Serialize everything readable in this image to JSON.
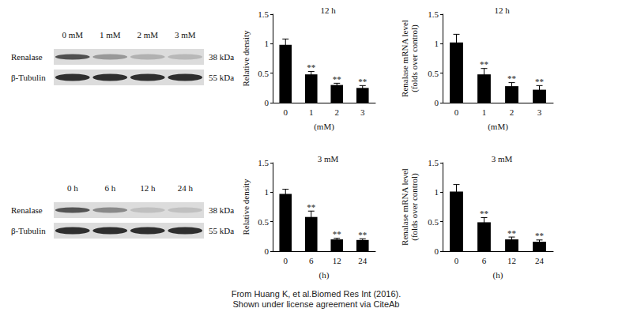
{
  "chart_data": [
    {
      "type": "bar",
      "title": "12 h",
      "y_label": "Relative density",
      "x_label": "(mM)",
      "categories": [
        "0",
        "1",
        "2",
        "3"
      ],
      "values": [
        0.98,
        0.48,
        0.3,
        0.25
      ],
      "errors": [
        0.1,
        0.05,
        0.03,
        0.04
      ],
      "annotations": [
        null,
        "**",
        "**",
        "**"
      ],
      "color": "#000000",
      "ylim": [
        0,
        1.5
      ],
      "yticks": [
        0,
        0.5,
        1,
        1.5
      ],
      "grid": false
    },
    {
      "type": "bar",
      "title": "12 h",
      "y_label": "Renalase mRNA level\n(folds over control)",
      "x_label": "(mM)",
      "categories": [
        "0",
        "1",
        "2",
        "3"
      ],
      "values": [
        1.02,
        0.48,
        0.28,
        0.22
      ],
      "errors": [
        0.14,
        0.1,
        0.06,
        0.07
      ],
      "annotations": [
        null,
        "**",
        "**",
        "**"
      ],
      "color": "#000000",
      "ylim": [
        0,
        1.5
      ],
      "yticks": [
        0,
        0.5,
        1,
        1.5
      ],
      "grid": false
    },
    {
      "type": "bar",
      "title": "3 mM",
      "y_label": "Relative density",
      "x_label": "(h)",
      "categories": [
        "0",
        "6",
        "12",
        "24"
      ],
      "values": [
        0.97,
        0.58,
        0.2,
        0.19
      ],
      "errors": [
        0.08,
        0.1,
        0.02,
        0.02
      ],
      "annotations": [
        null,
        "**",
        "**",
        "**"
      ],
      "color": "#000000",
      "ylim": [
        0,
        1.5
      ],
      "yticks": [
        0,
        0.5,
        1,
        1.5
      ],
      "grid": false
    },
    {
      "type": "bar",
      "title": "3 mM",
      "y_label": "Renalase mRNA level\n(folds over control)",
      "x_label": "(h)",
      "categories": [
        "0",
        "6",
        "12",
        "24"
      ],
      "values": [
        1.01,
        0.49,
        0.2,
        0.16
      ],
      "errors": [
        0.12,
        0.08,
        0.04,
        0.03
      ],
      "annotations": [
        null,
        "**",
        "**",
        "**"
      ],
      "color": "#000000",
      "ylim": [
        0,
        1.5
      ],
      "yticks": [
        0,
        0.5,
        1,
        1.5
      ],
      "grid": false
    }
  ],
  "blots": [
    {
      "lanes": [
        "0 mM",
        "1 mM",
        "2 mM",
        "3 mM"
      ],
      "rows": [
        {
          "label": "Renalase",
          "size": "38 kDa"
        },
        {
          "label": "β-Tubulin",
          "size": "55 kDa"
        }
      ]
    },
    {
      "lanes": [
        "0 h",
        "6 h",
        "12 h",
        "24 h"
      ],
      "rows": [
        {
          "label": "Renalase",
          "size": "38 kDa"
        },
        {
          "label": "β-Tubulin",
          "size": "55 kDa"
        }
      ]
    }
  ],
  "caption": [
    "From Huang K, et al.Biomed Res Int (2016).",
    "Shown under license agreement via CiteAb"
  ]
}
